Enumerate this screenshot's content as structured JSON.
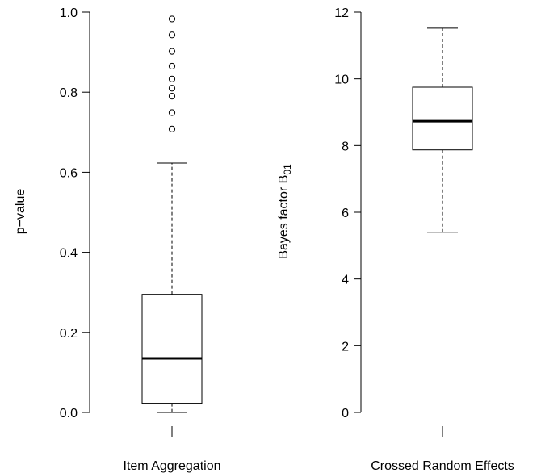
{
  "chart_data": [
    {
      "type": "box",
      "ylabel": "p−value",
      "ylim": [
        0,
        1
      ],
      "yticks": [
        0.0,
        0.2,
        0.4,
        0.6,
        0.8,
        1.0
      ],
      "ytick_labels": [
        "0.0",
        "0.2",
        "0.4",
        "0.6",
        "0.8",
        "1.0"
      ],
      "categories": [
        "Item Aggregation"
      ],
      "box": {
        "whisker_low": 0.0,
        "q1": 0.023,
        "median": 0.135,
        "q3": 0.295,
        "whisker_high": 0.623
      },
      "outliers": [
        0.708,
        0.749,
        0.79,
        0.81,
        0.833,
        0.865,
        0.902,
        0.943,
        0.983
      ]
    },
    {
      "type": "box",
      "ylabel": "Bayes factor B",
      "ylabel_subscript": "01",
      "ylim": [
        0,
        12
      ],
      "yticks": [
        0,
        2,
        4,
        6,
        8,
        10,
        12
      ],
      "ytick_labels": [
        "0",
        "2",
        "4",
        "6",
        "8",
        "10",
        "12"
      ],
      "categories": [
        "Crossed Random Effects"
      ],
      "box": {
        "whisker_low": 5.4,
        "q1": 7.87,
        "median": 8.73,
        "q3": 9.75,
        "whisker_high": 11.52
      },
      "outliers": []
    }
  ]
}
